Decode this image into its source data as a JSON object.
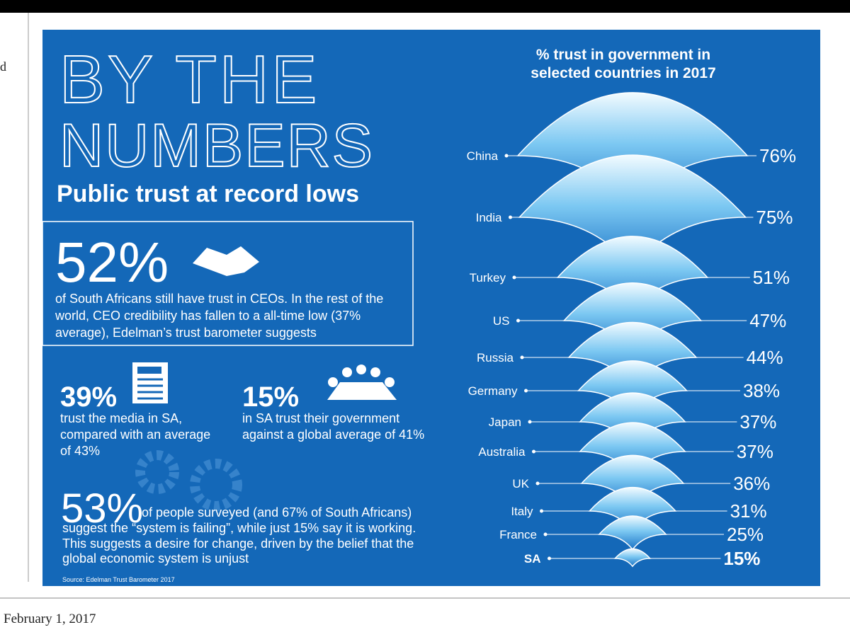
{
  "left_fragment": "d",
  "header": {
    "title_line1": "BY THE",
    "title_line2": "NUMBERS",
    "subtitle": "Public trust at record lows"
  },
  "stats": [
    {
      "value": "52%",
      "text": [
        "of South Africans still have trust in CEOs. In the rest of the",
        "world, CEO credibility has fallen to a all-time low (37%",
        "average), Edelman’s trust barometer suggests"
      ]
    },
    {
      "value": "39%",
      "text": [
        "trust the media in SA,",
        "compared with an average",
        "of 43%"
      ]
    },
    {
      "value": "15%",
      "text": [
        "in SA trust their government",
        "against a global average of 41%"
      ]
    },
    {
      "value": "53%",
      "text": [
        "of people surveyed (and 67% of South Africans)",
        "suggest the “system is failing”, while just  15% say it is working.",
        "This suggests a desire for change, driven by the belief that the",
        "global economic system is unjust"
      ]
    }
  ],
  "source": "Source: Edelman Trust Barometer 2017",
  "date": "February 1, 2017",
  "chart_data": {
    "type": "fan",
    "title": [
      "% trust in government in",
      "selected countries in 2017"
    ],
    "categories": [
      "China",
      "India",
      "Turkey",
      "US",
      "Russia",
      "Germany",
      "Japan",
      "Australia",
      "UK",
      "Italy",
      "France",
      "SA"
    ],
    "values": [
      76,
      75,
      51,
      47,
      44,
      38,
      37,
      37,
      36,
      31,
      25,
      15
    ],
    "value_labels": [
      "76%",
      "75%",
      "51%",
      "47%",
      "44%",
      "38%",
      "37%",
      "37%",
      "36%",
      "31%",
      "25%",
      "15%"
    ],
    "color": "#3a9ee0"
  }
}
